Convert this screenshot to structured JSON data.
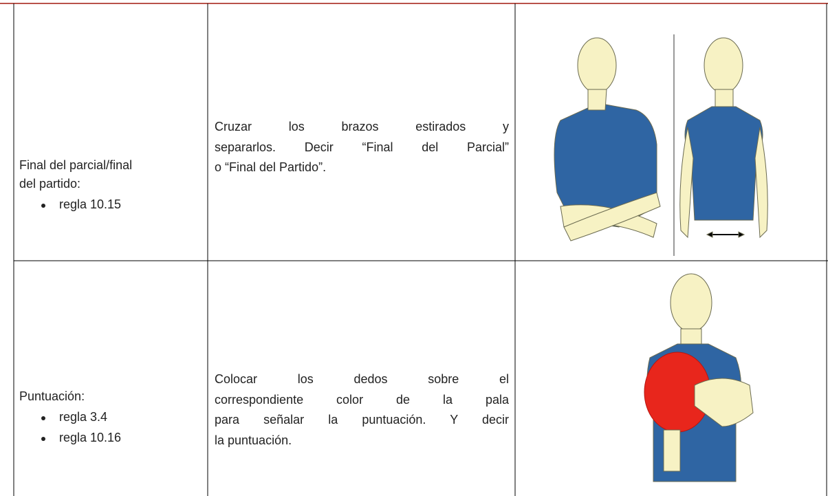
{
  "table": {
    "rows": [
      {
        "label": [
          "Final del parcial/final",
          "del partido:"
        ],
        "rules": [
          "regla 10.15"
        ],
        "description": [
          "Cruzar los brazos estirados y",
          "separarlos. Decir “Final del Parcial”",
          "o “Final del Partido”."
        ]
      },
      {
        "label": [
          "Puntuación:"
        ],
        "rules": [
          "regla 3.4",
          "regla 10.16"
        ],
        "description": [
          "Colocar los dedos sobre el",
          "correspondiente color de la pala",
          "para señalar la puntuación. Y decir",
          "la puntuación."
        ]
      }
    ]
  }
}
